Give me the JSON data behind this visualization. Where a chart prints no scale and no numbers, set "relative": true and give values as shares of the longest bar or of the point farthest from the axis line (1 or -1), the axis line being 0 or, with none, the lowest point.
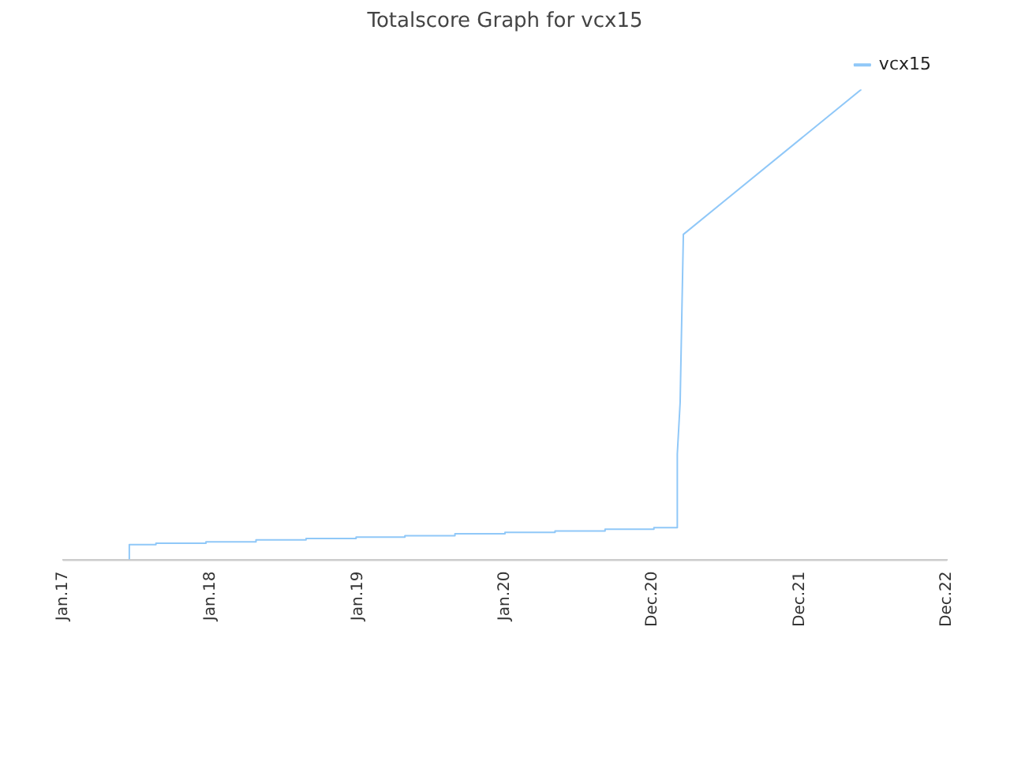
{
  "chart_data": {
    "type": "line",
    "title": "Totalscore Graph for vcx15",
    "relative": true,
    "xlim": [
      "2017-01-01",
      "2022-12-31"
    ],
    "xticks": [
      {
        "value": "2017-01-01",
        "label": "Jan.17"
      },
      {
        "value": "2018-01-01",
        "label": "Jan.18"
      },
      {
        "value": "2019-01-01",
        "label": "Jan.19"
      },
      {
        "value": "2020-01-01",
        "label": "Jan.20"
      },
      {
        "value": "2020-12-31",
        "label": "Dec.20"
      },
      {
        "value": "2021-12-31",
        "label": "Dec.21"
      },
      {
        "value": "2022-12-31",
        "label": "Dec.22"
      }
    ],
    "legend": "top right",
    "marker": "none",
    "line_style": "solid",
    "series": [
      {
        "name": "vcx15",
        "color": "#90c8f8",
        "x": [
          "2017-06-14",
          "2017-06-14",
          "2017-08-19",
          "2017-08-19",
          "2017-12-21",
          "2017-12-21",
          "2018-04-24",
          "2018-04-24",
          "2018-08-26",
          "2018-08-26",
          "2018-12-28",
          "2018-12-28",
          "2019-04-28",
          "2019-04-28",
          "2019-08-30",
          "2019-08-30",
          "2020-01-01",
          "2020-01-01",
          "2020-05-04",
          "2020-05-04",
          "2020-09-05",
          "2020-09-05",
          "2021-01-04",
          "2021-01-04",
          "2021-03-03",
          "2021-03-03",
          "2021-03-10",
          "2021-03-18",
          "2022-06-02"
        ],
        "values": [
          0,
          0.033,
          0.033,
          0.036,
          0.036,
          0.039,
          0.039,
          0.043,
          0.043,
          0.046,
          0.046,
          0.049,
          0.049,
          0.052,
          0.052,
          0.056,
          0.056,
          0.059,
          0.059,
          0.062,
          0.062,
          0.066,
          0.066,
          0.069,
          0.069,
          0.226,
          0.335,
          0.692,
          1
        ]
      }
    ]
  }
}
